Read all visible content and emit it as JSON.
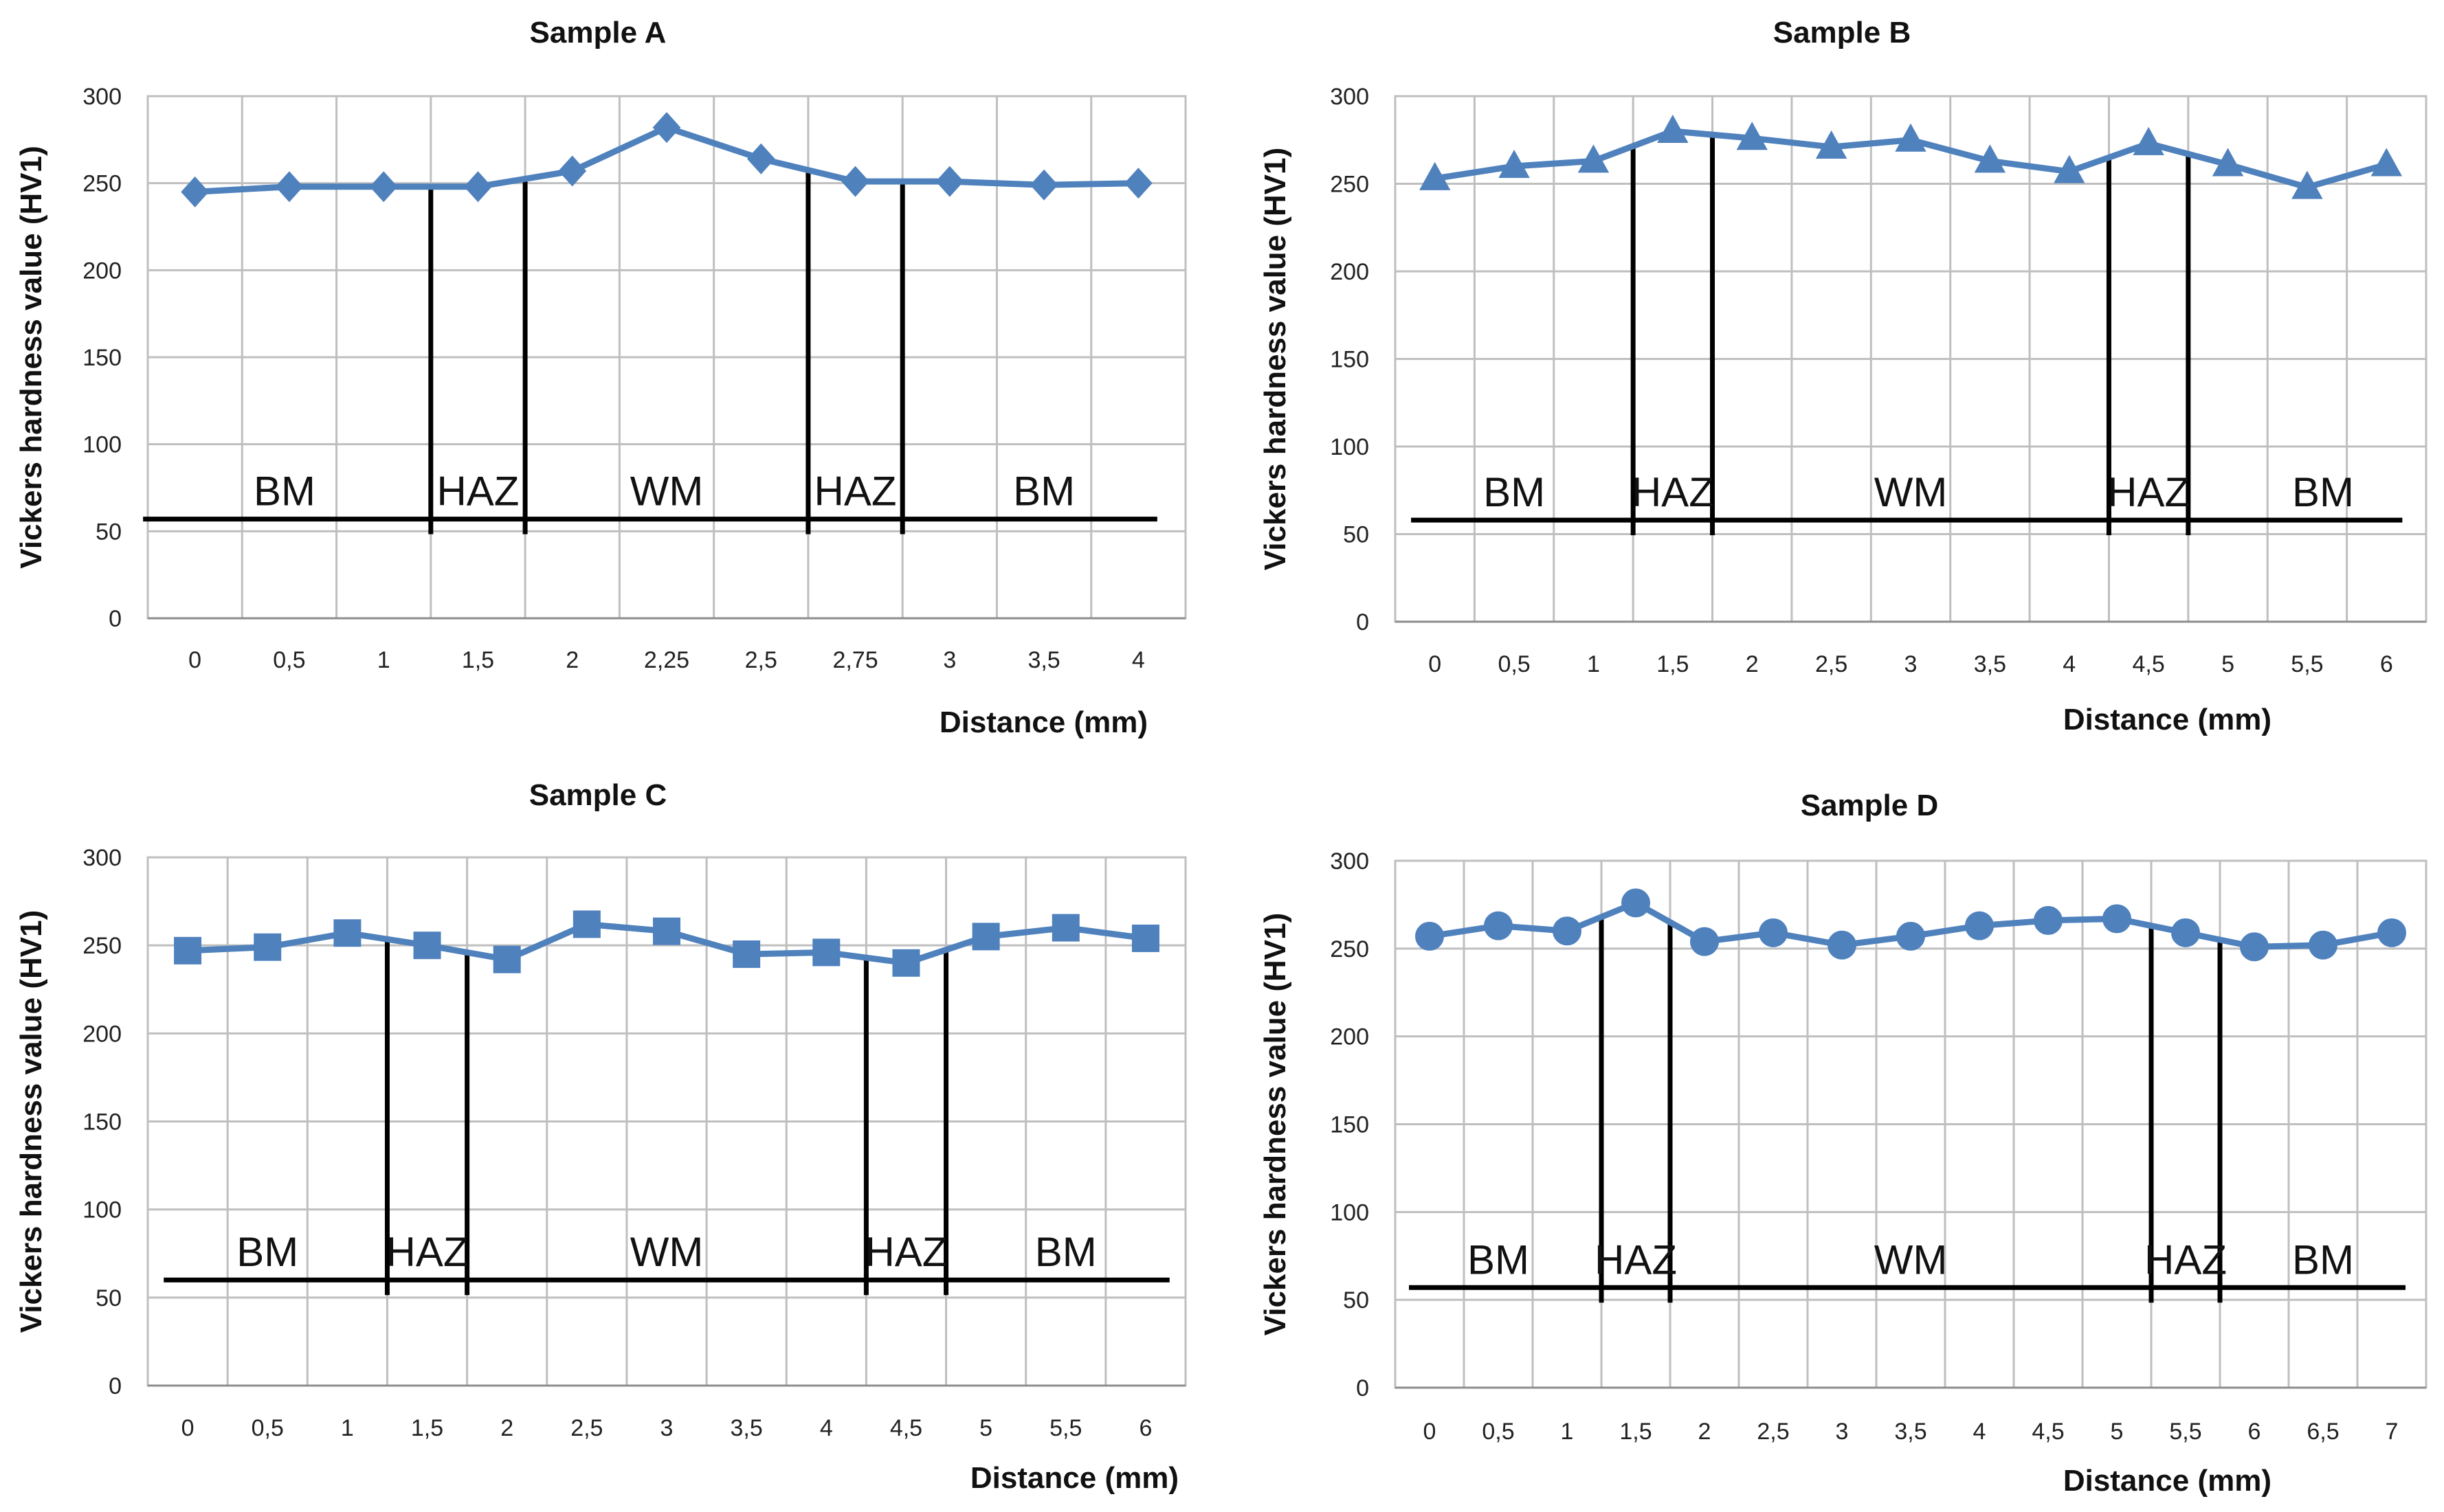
{
  "figure": {
    "accent_color": "#4f81bd",
    "zone_color": "#000000",
    "grid_color": "#bfbfbf"
  },
  "chart_data": [
    {
      "id": "a",
      "type": "line",
      "title": "Sample A",
      "xlabel": "Distance (mm)",
      "ylabel": "Vickers hardness value (HV1)",
      "marker": "diamond",
      "categories": [
        "0",
        "0,5",
        "1",
        "1,5",
        "2",
        "2,25",
        "2,5",
        "2,75",
        "3",
        "3,5",
        "4"
      ],
      "values": [
        245,
        248,
        248,
        248,
        257,
        282,
        264,
        251,
        251,
        249,
        250
      ],
      "yticks": [
        "0",
        "50",
        "100",
        "150",
        "200",
        "250",
        "300"
      ],
      "ylim": [
        0,
        300
      ],
      "zone_level": 57,
      "zone_lines": [
        2.5,
        3.5,
        6.5,
        7.5
      ],
      "zone_span": [
        -0.55,
        10.2
      ],
      "zone_line_tops": [
        248,
        253,
        257,
        251
      ],
      "zones": [
        {
          "label": "BM",
          "pos": 0.95
        },
        {
          "label": "HAZ",
          "pos": 3.0
        },
        {
          "label": "WM",
          "pos": 5.0
        },
        {
          "label": "HAZ",
          "pos": 7.0
        },
        {
          "label": "BM",
          "pos": 9.0
        }
      ]
    },
    {
      "id": "b",
      "type": "line",
      "title": "Sample B",
      "xlabel": "Distance (mm)",
      "ylabel": "Vickers hardness value (HV1)",
      "marker": "triangle",
      "categories": [
        "0",
        "0,5",
        "1",
        "1,5",
        "2",
        "2,5",
        "3",
        "3,5",
        "4",
        "4,5",
        "5",
        "5,5",
        "6"
      ],
      "values": [
        253,
        260,
        263,
        280,
        276,
        271,
        275,
        263,
        257,
        273,
        261,
        248,
        261
      ],
      "yticks": [
        "0",
        "50",
        "100",
        "150",
        "200",
        "250",
        "300"
      ],
      "ylim": [
        0,
        300
      ],
      "zone_level": 58,
      "zone_lines": [
        2.5,
        3.5,
        8.5,
        9.5
      ],
      "zone_span": [
        -0.3,
        12.2
      ],
      "zone_line_tops": [
        271,
        278,
        265,
        267
      ],
      "zones": [
        {
          "label": "BM",
          "pos": 1.0
        },
        {
          "label": "HAZ",
          "pos": 3.0
        },
        {
          "label": "WM",
          "pos": 6.0
        },
        {
          "label": "HAZ",
          "pos": 9.0
        },
        {
          "label": "BM",
          "pos": 11.2
        }
      ]
    },
    {
      "id": "c",
      "type": "line",
      "title": "Sample C",
      "xlabel": "Distance (mm)",
      "ylabel": "Vickers hardness value (HV1)",
      "marker": "square",
      "categories": [
        "0",
        "0,5",
        "1",
        "1,5",
        "2",
        "2,5",
        "3",
        "3,5",
        "4",
        "4,5",
        "5",
        "5,5",
        "6"
      ],
      "values": [
        247,
        249,
        257,
        250,
        242,
        262,
        258,
        245,
        246,
        240,
        255,
        260,
        254
      ],
      "yticks": [
        "0",
        "50",
        "100",
        "150",
        "200",
        "250",
        "300"
      ],
      "ylim": [
        0,
        300
      ],
      "zone_level": 60,
      "zone_lines": [
        2.5,
        3.5,
        8.5,
        9.5
      ],
      "zone_span": [
        -0.3,
        12.3
      ],
      "zone_line_tops": [
        253,
        246,
        243,
        248
      ],
      "zones": [
        {
          "label": "BM",
          "pos": 1.0
        },
        {
          "label": "HAZ",
          "pos": 3.0
        },
        {
          "label": "WM",
          "pos": 6.0
        },
        {
          "label": "HAZ",
          "pos": 9.0
        },
        {
          "label": "BM",
          "pos": 11.0
        }
      ]
    },
    {
      "id": "d",
      "type": "line",
      "title": "Sample D",
      "xlabel": "Distance (mm)",
      "ylabel": "Vickers hardness value (HV1)",
      "marker": "circle",
      "categories": [
        "0",
        "0,5",
        "1",
        "1,5",
        "2",
        "2,5",
        "3",
        "3,5",
        "4",
        "4,5",
        "5",
        "5,5",
        "6",
        "6,5",
        "7"
      ],
      "values": [
        257,
        263,
        260,
        276,
        254,
        259,
        252,
        257,
        263,
        266,
        267,
        259,
        251,
        252,
        259
      ],
      "yticks": [
        "0",
        "50",
        "100",
        "150",
        "200",
        "250",
        "300"
      ],
      "ylim": [
        0,
        300
      ],
      "zone_level": 57,
      "zone_lines": [
        2.5,
        3.5,
        10.5,
        11.5
      ],
      "zone_span": [
        -0.3,
        14.2
      ],
      "zone_line_tops": [
        268,
        265,
        263,
        255
      ],
      "zones": [
        {
          "label": "BM",
          "pos": 1.0
        },
        {
          "label": "HAZ",
          "pos": 3.0
        },
        {
          "label": "WM",
          "pos": 7.0
        },
        {
          "label": "HAZ",
          "pos": 11.0
        },
        {
          "label": "BM",
          "pos": 13.0
        }
      ]
    }
  ]
}
